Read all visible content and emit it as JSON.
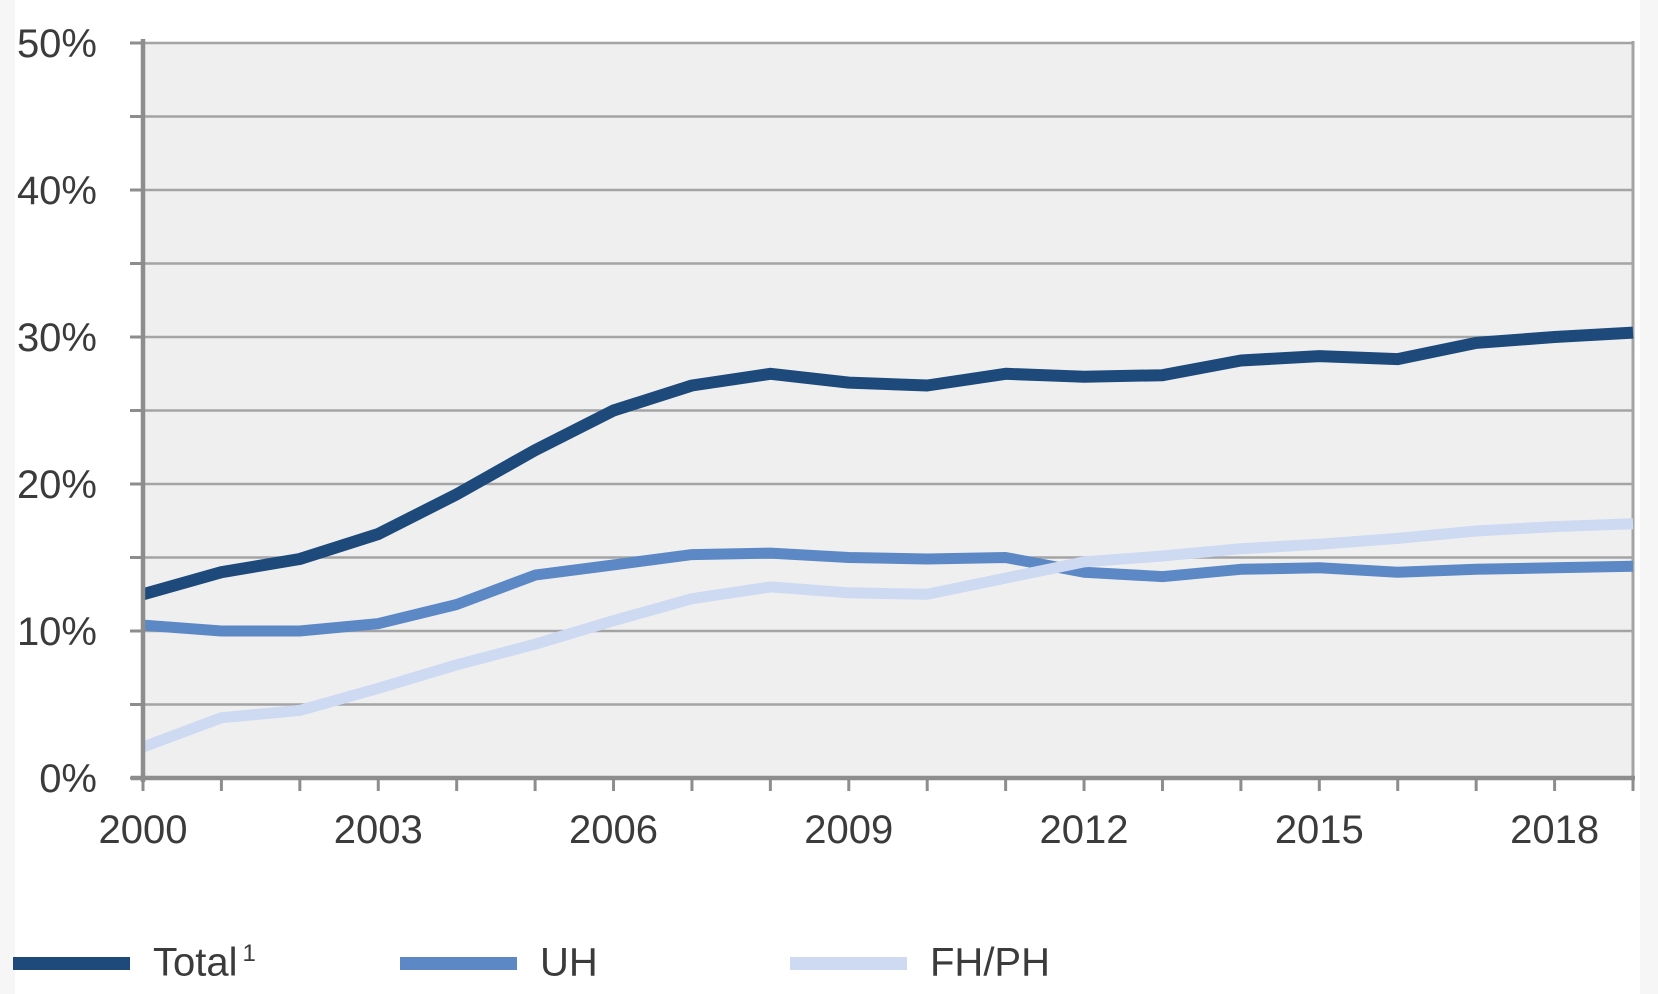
{
  "chart_data": {
    "type": "line",
    "title": "",
    "xlabel": "",
    "ylabel": "",
    "x": [
      2000,
      2001,
      2002,
      2003,
      2004,
      2005,
      2006,
      2007,
      2008,
      2009,
      2010,
      2011,
      2012,
      2013,
      2014,
      2015,
      2016,
      2017,
      2018,
      2019
    ],
    "series": [
      {
        "name": "Total",
        "superscript": "1",
        "color": "#1d4a7a",
        "line_width": 12,
        "values": [
          12.5,
          14.0,
          14.9,
          16.6,
          19.3,
          22.3,
          25.0,
          26.7,
          27.5,
          26.9,
          26.7,
          27.5,
          27.3,
          27.4,
          28.4,
          28.7,
          28.5,
          29.6,
          30.0,
          30.3
        ]
      },
      {
        "name": "UH",
        "superscript": "",
        "color": "#5c88c5",
        "line_width": 11,
        "values": [
          10.4,
          10.0,
          10.0,
          10.5,
          11.8,
          13.8,
          14.5,
          15.2,
          15.3,
          15.0,
          14.9,
          15.0,
          14.0,
          13.7,
          14.2,
          14.3,
          14.0,
          14.2,
          14.3,
          14.4
        ]
      },
      {
        "name": "FH/PH",
        "superscript": "",
        "color": "#cddaf2",
        "line_width": 11,
        "values": [
          2.1,
          4.1,
          4.6,
          6.1,
          7.7,
          9.1,
          10.7,
          12.2,
          13.0,
          12.6,
          12.5,
          13.6,
          14.7,
          15.1,
          15.6,
          15.9,
          16.3,
          16.8,
          17.1,
          17.3
        ]
      }
    ],
    "ylim": [
      0,
      50
    ],
    "y_gridline_step": 5,
    "y_major_ticks": [
      0,
      10,
      20,
      30,
      40,
      50
    ],
    "y_tick_labels": [
      "0%",
      "10%",
      "20%",
      "30%",
      "40%",
      "50%"
    ],
    "x_label_years": [
      2000,
      2003,
      2006,
      2009,
      2012,
      2015,
      2018
    ],
    "grid": true,
    "legend_position": "bottom",
    "plot_bg": "#efefef",
    "grid_color": "#a4a4a4",
    "axis_color": "#8d8d8d",
    "label_color": "#3b3b3b"
  },
  "legend": {
    "items": [
      {
        "label": "Total",
        "sup": "1"
      },
      {
        "label": "UH",
        "sup": ""
      },
      {
        "label": "FH/PH",
        "sup": ""
      }
    ]
  }
}
